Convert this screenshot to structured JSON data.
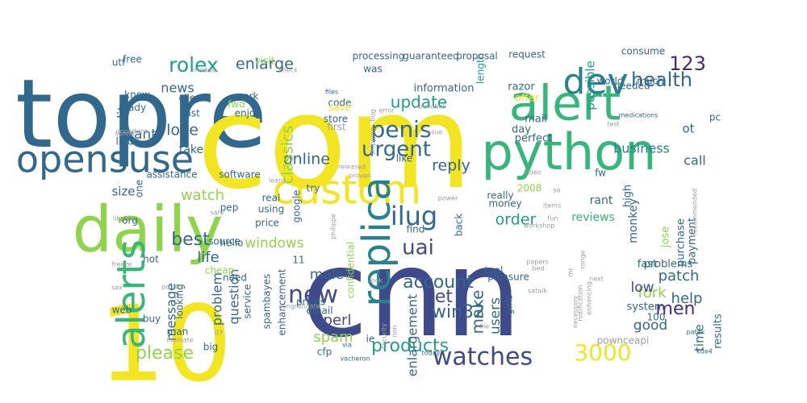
{
  "colors": {
    "background": "#ffffff",
    "palette": {
      "y": "#f3e51f",
      "lg": "#8ed54a",
      "g": "#35b779",
      "tl": "#1f9e89",
      "t": "#26828e",
      "b": "#31688e",
      "db": "#3e4a89",
      "p": "#482878",
      "dp": "#440154",
      "gr": "#9e9e9e"
    }
  },
  "words": [
    {
      "text": "topre",
      "c": "b"
    },
    {
      "text": "com",
      "c": "y"
    },
    {
      "text": "cnn",
      "c": "db"
    },
    {
      "text": "10",
      "c": "y"
    },
    {
      "text": "daily",
      "c": "lg"
    },
    {
      "text": "python",
      "c": "g"
    },
    {
      "text": "alert",
      "c": "g"
    },
    {
      "text": "custom",
      "c": "y"
    },
    {
      "text": "dev",
      "c": "t"
    },
    {
      "text": "opensuse",
      "c": "b"
    },
    {
      "text": "alerts",
      "c": "g"
    },
    {
      "text": "replica",
      "c": "t"
    },
    {
      "text": "watches",
      "c": "db"
    },
    {
      "text": "3000",
      "c": "y"
    },
    {
      "text": "new",
      "c": "db"
    },
    {
      "text": "penis",
      "c": "b"
    },
    {
      "text": "urgent",
      "c": "b"
    },
    {
      "text": "rolex",
      "c": "tl"
    },
    {
      "text": "ilug",
      "c": "b"
    },
    {
      "text": "uai",
      "c": "db"
    },
    {
      "text": "health",
      "c": "b"
    },
    {
      "text": "123",
      "c": "p"
    },
    {
      "text": "men",
      "c": "p"
    },
    {
      "text": "update",
      "c": "tl"
    },
    {
      "text": "account",
      "c": "b"
    },
    {
      "text": "get",
      "c": "db"
    },
    {
      "text": "please",
      "c": "lg"
    },
    {
      "text": "best",
      "c": "b"
    },
    {
      "text": "products",
      "c": "tl"
    },
    {
      "text": "win32",
      "c": "b"
    },
    {
      "text": "reply",
      "c": "b"
    },
    {
      "text": "online",
      "c": "b"
    },
    {
      "text": "enlarge",
      "c": "b"
    },
    {
      "text": "order",
      "c": "tl"
    },
    {
      "text": "news",
      "c": "b"
    },
    {
      "text": "love",
      "c": "b"
    },
    {
      "text": "classics",
      "c": "lg"
    },
    {
      "text": "watch",
      "c": "lg"
    },
    {
      "text": "life",
      "c": "b"
    },
    {
      "text": "patch",
      "c": "b"
    },
    {
      "text": "help",
      "c": "b"
    },
    {
      "text": "fork",
      "c": "lg"
    },
    {
      "text": "good",
      "c": "b"
    },
    {
      "text": "low",
      "c": "db"
    },
    {
      "text": "make",
      "c": "b"
    },
    {
      "text": "perl",
      "c": "db"
    },
    {
      "text": "spam",
      "c": "lg"
    },
    {
      "text": "male",
      "c": "b"
    },
    {
      "text": "users",
      "c": "b"
    },
    {
      "text": "enlargement",
      "c": "b"
    },
    {
      "text": "windows",
      "c": "lg"
    },
    {
      "text": "quality",
      "c": "b"
    },
    {
      "text": "want",
      "c": "b"
    },
    {
      "text": "business",
      "c": "t"
    },
    {
      "text": "call",
      "c": "b"
    },
    {
      "text": "question",
      "c": "b"
    },
    {
      "text": "problem",
      "c": "b"
    },
    {
      "text": "message",
      "c": "b"
    },
    {
      "text": "possible",
      "c": "tl"
    },
    {
      "text": "size",
      "c": "b"
    },
    {
      "text": "time",
      "c": "b"
    },
    {
      "text": "ot",
      "c": "b"
    },
    {
      "text": "take",
      "c": "b"
    },
    {
      "text": "reviews",
      "c": "g"
    },
    {
      "text": "rant",
      "c": "b"
    },
    {
      "text": "monkey",
      "c": "b"
    },
    {
      "text": "high",
      "c": "b"
    },
    {
      "text": "jose",
      "c": "lg"
    },
    {
      "text": "purchase",
      "c": "b"
    },
    {
      "text": "payment",
      "c": "b"
    },
    {
      "text": "problems",
      "c": "b"
    },
    {
      "text": "fast",
      "c": "b"
    },
    {
      "text": "system",
      "c": "b"
    },
    {
      "text": "results",
      "c": "b"
    },
    {
      "text": "perfect",
      "c": "b"
    },
    {
      "text": "day",
      "c": "b"
    },
    {
      "text": "mail",
      "c": "b"
    },
    {
      "text": "offer",
      "c": "y"
    },
    {
      "text": "razor",
      "c": "b"
    },
    {
      "text": "information",
      "c": "b"
    },
    {
      "text": "length",
      "c": "tl"
    },
    {
      "text": "request",
      "c": "b"
    },
    {
      "text": "proposal",
      "c": "b"
    },
    {
      "text": "guaranteed",
      "c": "b"
    },
    {
      "text": "processing",
      "c": "b"
    },
    {
      "text": "was",
      "c": "b"
    },
    {
      "text": "visit",
      "c": "lg"
    },
    {
      "text": "free",
      "c": "b"
    },
    {
      "text": "know",
      "c": "b"
    },
    {
      "text": "ready",
      "c": "b"
    },
    {
      "text": "client",
      "c": "b"
    },
    {
      "text": "last",
      "c": "b"
    },
    {
      "text": "work",
      "c": "b"
    },
    {
      "text": "fwd",
      "c": "lg"
    },
    {
      "text": "enjoy",
      "c": "b"
    },
    {
      "text": "code",
      "c": "b"
    },
    {
      "text": "save",
      "c": "y"
    },
    {
      "text": "store",
      "c": "b"
    },
    {
      "text": "first",
      "c": "gr"
    },
    {
      "text": "files",
      "c": "b"
    },
    {
      "text": "buildbot",
      "c": "gr"
    },
    {
      "text": "error",
      "c": "gr"
    },
    {
      "text": "issue",
      "c": "gr"
    },
    {
      "text": "bug",
      "c": "gr"
    },
    {
      "text": "shipping",
      "c": "gr"
    },
    {
      "text": "released",
      "c": "gr"
    },
    {
      "text": "proven",
      "c": "gr"
    },
    {
      "text": "like",
      "c": "b"
    },
    {
      "text": "assistance",
      "c": "b"
    },
    {
      "text": "software",
      "c": "b"
    },
    {
      "text": "learn",
      "c": "gr"
    },
    {
      "text": "fw",
      "c": "b"
    },
    {
      "text": "video",
      "c": "gr"
    },
    {
      "text": "sa",
      "c": "gr"
    },
    {
      "text": "items",
      "c": "gr"
    },
    {
      "text": "fun",
      "c": "gr"
    },
    {
      "text": "workshop",
      "c": "gr"
    },
    {
      "text": "papers",
      "c": "gr"
    },
    {
      "text": "satalk",
      "c": "gr"
    },
    {
      "text": "mr",
      "c": "gr"
    },
    {
      "text": "range",
      "c": "gr"
    },
    {
      "text": "bed",
      "c": "gr"
    },
    {
      "text": "next",
      "c": "gr"
    },
    {
      "text": "notification",
      "c": "gr"
    },
    {
      "text": "enhancing",
      "c": "gr"
    },
    {
      "text": "necessary",
      "c": "gr"
    },
    {
      "text": "recommended",
      "c": "gr"
    },
    {
      "text": "patek",
      "c": "b"
    },
    {
      "text": "kde4",
      "c": "b"
    },
    {
      "text": "consume",
      "c": "b"
    },
    {
      "text": "world",
      "c": "b"
    },
    {
      "text": "needed",
      "c": "b"
    },
    {
      "text": "much",
      "c": "b"
    },
    {
      "text": "medications",
      "c": "b"
    },
    {
      "text": "test",
      "c": "gr"
    },
    {
      "text": "pc",
      "c": "b"
    },
    {
      "text": "utf",
      "c": "b"
    },
    {
      "text": "module",
      "c": "gr"
    },
    {
      "text": "check",
      "c": "gr"
    },
    {
      "text": "server",
      "c": "gr"
    },
    {
      "text": "important",
      "c": "gr"
    },
    {
      "text": "linux",
      "c": "b"
    },
    {
      "text": "one",
      "c": "b"
    },
    {
      "text": "org",
      "c": "b"
    },
    {
      "text": "libidos",
      "c": "gr"
    },
    {
      "text": "hot",
      "c": "b"
    },
    {
      "text": "freeze",
      "c": "gr"
    },
    {
      "text": "sex",
      "c": "gr"
    },
    {
      "text": "web",
      "c": "b"
    },
    {
      "text": "buy",
      "c": "b"
    },
    {
      "text": "man",
      "c": "b"
    },
    {
      "text": "looking",
      "c": "b"
    },
    {
      "text": "postfix",
      "c": "gr"
    },
    {
      "text": "need",
      "c": "b"
    },
    {
      "text": "service",
      "c": "b"
    },
    {
      "text": "big",
      "c": "b"
    },
    {
      "text": "intimate",
      "c": "gr"
    },
    {
      "text": "07",
      "c": "gr"
    },
    {
      "text": "cfp",
      "c": "b"
    },
    {
      "text": "via",
      "c": "b"
    },
    {
      "text": "vacheron",
      "c": "b"
    },
    {
      "text": "ie",
      "c": "b"
    },
    {
      "text": "email",
      "c": "b"
    },
    {
      "text": "prices",
      "c": "b"
    },
    {
      "text": "spambayes",
      "c": "b"
    },
    {
      "text": "enhancement",
      "c": "b"
    },
    {
      "text": "congratulate",
      "c": "gr"
    },
    {
      "text": "cheap",
      "c": "lg"
    },
    {
      "text": "source",
      "c": "b"
    },
    {
      "text": "hello",
      "c": "b"
    },
    {
      "text": "price",
      "c": "b"
    },
    {
      "text": "using",
      "c": "b"
    },
    {
      "text": "real",
      "c": "b"
    },
    {
      "text": "pep",
      "c": "b"
    },
    {
      "text": "google",
      "c": "b"
    },
    {
      "text": "try",
      "c": "b"
    },
    {
      "text": "safe",
      "c": "gr"
    },
    {
      "text": "philippe",
      "c": "gr"
    },
    {
      "text": "11",
      "c": "b"
    },
    {
      "text": "confidential",
      "c": "lg"
    },
    {
      "text": "security",
      "c": "gr"
    },
    {
      "text": "non",
      "c": "gr"
    },
    {
      "text": "look",
      "c": "gr"
    },
    {
      "text": "tool",
      "c": "b"
    },
    {
      "text": "find",
      "c": "b"
    },
    {
      "text": "back",
      "c": "b"
    },
    {
      "text": "really",
      "c": "b"
    },
    {
      "text": "2008",
      "c": "lg"
    },
    {
      "text": "money",
      "c": "b"
    },
    {
      "text": "power",
      "c": "gr"
    },
    {
      "text": "girls",
      "c": "b"
    },
    {
      "text": "file",
      "c": "gr"
    },
    {
      "text": "pleasure",
      "c": "b"
    },
    {
      "text": "today",
      "c": "b"
    },
    {
      "text": "pownceapi",
      "c": "gr"
    },
    {
      "text": "100",
      "c": "b"
    },
    {
      "text": "you",
      "c": "b"
    }
  ]
}
